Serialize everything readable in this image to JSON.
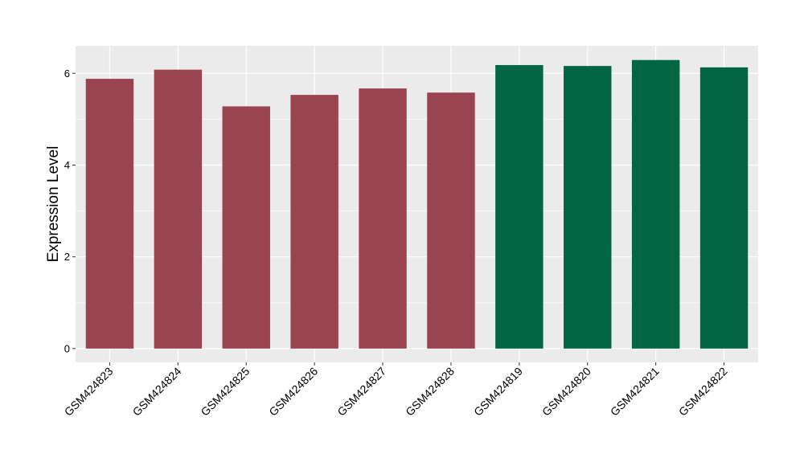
{
  "chart_data": {
    "type": "bar",
    "title": "",
    "xlabel": "",
    "ylabel": "Expression Level",
    "ylim": [
      -0.3,
      6.6
    ],
    "yticks": [
      0,
      2,
      4,
      6
    ],
    "grid": true,
    "legend": "none",
    "categories": [
      "GSM424823",
      "GSM424824",
      "GSM424825",
      "GSM424826",
      "GSM424827",
      "GSM424828",
      "GSM424819",
      "GSM424820",
      "GSM424821",
      "GSM424822"
    ],
    "values": [
      5.88,
      6.08,
      5.28,
      5.53,
      5.67,
      5.58,
      6.18,
      6.16,
      6.29,
      6.13
    ],
    "bar_colors": [
      "#994450",
      "#994450",
      "#994450",
      "#994450",
      "#994450",
      "#994450",
      "#006644",
      "#006644",
      "#006644",
      "#006644"
    ]
  },
  "colors": {
    "panel_background": "#EBEBEB",
    "grid_line": "#FFFFFF",
    "axis_tick": "#333333"
  }
}
